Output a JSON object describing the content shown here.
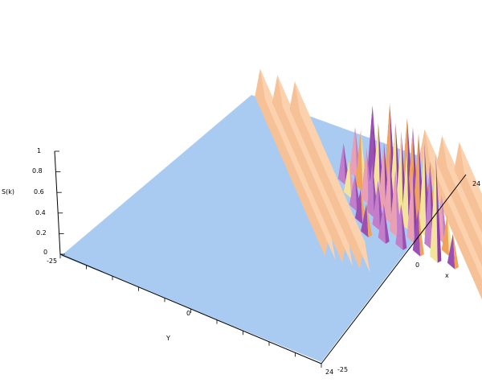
{
  "chart_data": {
    "type": "surface",
    "title": "",
    "zlabel": "S(k)",
    "xlabel": "x",
    "ylabel": "Y",
    "xlim": [
      -25,
      24
    ],
    "ylim": [
      -25,
      24
    ],
    "zlim": [
      0,
      1
    ],
    "z_ticks": [
      "0",
      "0.2",
      "0.4",
      "0.6",
      "0.8",
      "1"
    ],
    "x_ticks": [
      "-25",
      "0",
      "24"
    ],
    "y_ticks": [
      "-25",
      "0",
      "24"
    ],
    "ridges": [
      {
        "x": -23,
        "height": 0.28
      },
      {
        "x": -19,
        "height": 0.28
      },
      {
        "x": -15,
        "height": 0.28
      },
      {
        "x": 15,
        "height": 0.28
      },
      {
        "x": 19,
        "height": 0.28
      },
      {
        "x": 23,
        "height": 0.28
      }
    ],
    "peaks": [
      {
        "x": -10,
        "y": -6,
        "z": 0.36
      },
      {
        "x": -10,
        "y": -2,
        "z": 0.33
      },
      {
        "x": -10,
        "y": 2,
        "z": 0.31
      },
      {
        "x": -10,
        "y": 6,
        "z": 0.3
      },
      {
        "x": -10,
        "y": 10,
        "z": 0.28
      },
      {
        "x": -6,
        "y": -10,
        "z": 0.45
      },
      {
        "x": -6,
        "y": -6,
        "z": 0.55
      },
      {
        "x": -6,
        "y": -2,
        "z": 0.5
      },
      {
        "x": -6,
        "y": 2,
        "z": 0.48
      },
      {
        "x": -6,
        "y": 6,
        "z": 0.44
      },
      {
        "x": -6,
        "y": 10,
        "z": 0.34
      },
      {
        "x": -2,
        "y": -10,
        "z": 0.72
      },
      {
        "x": -2,
        "y": -6,
        "z": 0.68
      },
      {
        "x": -2,
        "y": -2,
        "z": 0.62
      },
      {
        "x": -2,
        "y": 2,
        "z": 0.66
      },
      {
        "x": -2,
        "y": 6,
        "z": 0.6
      },
      {
        "x": -2,
        "y": 10,
        "z": 0.4
      },
      {
        "x": 2,
        "y": -10,
        "z": 0.8
      },
      {
        "x": 2,
        "y": -6,
        "z": 0.74
      },
      {
        "x": 2,
        "y": -2,
        "z": 0.78
      },
      {
        "x": 2,
        "y": 2,
        "z": 0.72
      },
      {
        "x": 2,
        "y": 6,
        "z": 0.7
      },
      {
        "x": 2,
        "y": 10,
        "z": 0.42
      },
      {
        "x": 6,
        "y": -10,
        "z": 0.72
      },
      {
        "x": 6,
        "y": -6,
        "z": 0.76
      },
      {
        "x": 6,
        "y": -2,
        "z": 0.82
      },
      {
        "x": 6,
        "y": 2,
        "z": 0.86
      },
      {
        "x": 6,
        "y": 6,
        "z": 0.8
      },
      {
        "x": 6,
        "y": 10,
        "z": 1.0
      },
      {
        "x": 10,
        "y": -10,
        "z": 0.36
      },
      {
        "x": 10,
        "y": -6,
        "z": 0.38
      },
      {
        "x": 10,
        "y": -2,
        "z": 0.4
      },
      {
        "x": 10,
        "y": 2,
        "z": 0.42
      },
      {
        "x": 10,
        "y": 6,
        "z": 0.36
      },
      {
        "x": 10,
        "y": 10,
        "z": 0.3
      }
    ]
  }
}
